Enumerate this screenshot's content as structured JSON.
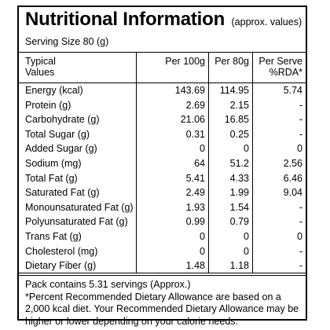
{
  "label": {
    "title": "Nutritional Information",
    "title_note": "(approx. values)",
    "serving_size": "Serving Size 80 (g)",
    "headers": {
      "typical_line1": "Typical",
      "typical_line2": "Values",
      "per100": "Per 100g",
      "per80": "Per 80g",
      "rda_line1": "Per Serve",
      "rda_line2": "%RDA*"
    },
    "rows": [
      {
        "name": "Energy (kcal)",
        "per100": "143.69",
        "per80": "114.95",
        "rda": "5.74"
      },
      {
        "name": "Protein (g)",
        "per100": "2.69",
        "per80": "2.15",
        "rda": "-"
      },
      {
        "name": "Carbohydrate (g)",
        "per100": "21.06",
        "per80": "16.85",
        "rda": "-"
      },
      {
        "name": "Total Sugar (g)",
        "per100": "0.31",
        "per80": "0.25",
        "rda": "-"
      },
      {
        "name": "Added Sugar (g)",
        "per100": "0",
        "per80": "0",
        "rda": "0"
      },
      {
        "name": "Sodium (mg)",
        "per100": "64",
        "per80": "51.2",
        "rda": "2.56"
      },
      {
        "name": "Total Fat (g)",
        "per100": "5.41",
        "per80": "4.33",
        "rda": "6.46"
      },
      {
        "name": "Saturated Fat (g)",
        "per100": "2.49",
        "per80": "1.99",
        "rda": "9.04"
      },
      {
        "name": "Monounsaturated Fat (g)",
        "per100": "1.93",
        "per80": "1.54",
        "rda": "-"
      },
      {
        "name": "Polyunsaturated Fat (g)",
        "per100": "0.99",
        "per80": "0.79",
        "rda": "-"
      },
      {
        "name": "Trans Fat (g)",
        "per100": "0",
        "per80": "0",
        "rda": "0"
      },
      {
        "name": "Cholesterol (mg)",
        "per100": "0",
        "per80": "0",
        "rda": "-"
      },
      {
        "name": "Dietary Fiber (g)",
        "per100": "1.48",
        "per80": "1.18",
        "rda": "-"
      }
    ],
    "footer": {
      "pack_contains": "Pack contains 5.31 servings (Approx.)",
      "rda_note": "*Percent Recommended Dietary Allowance are based on a 2,000 kcal diet. Your Recommended Dietary Allowance may be higher or lower depending on your calorie needs."
    }
  }
}
